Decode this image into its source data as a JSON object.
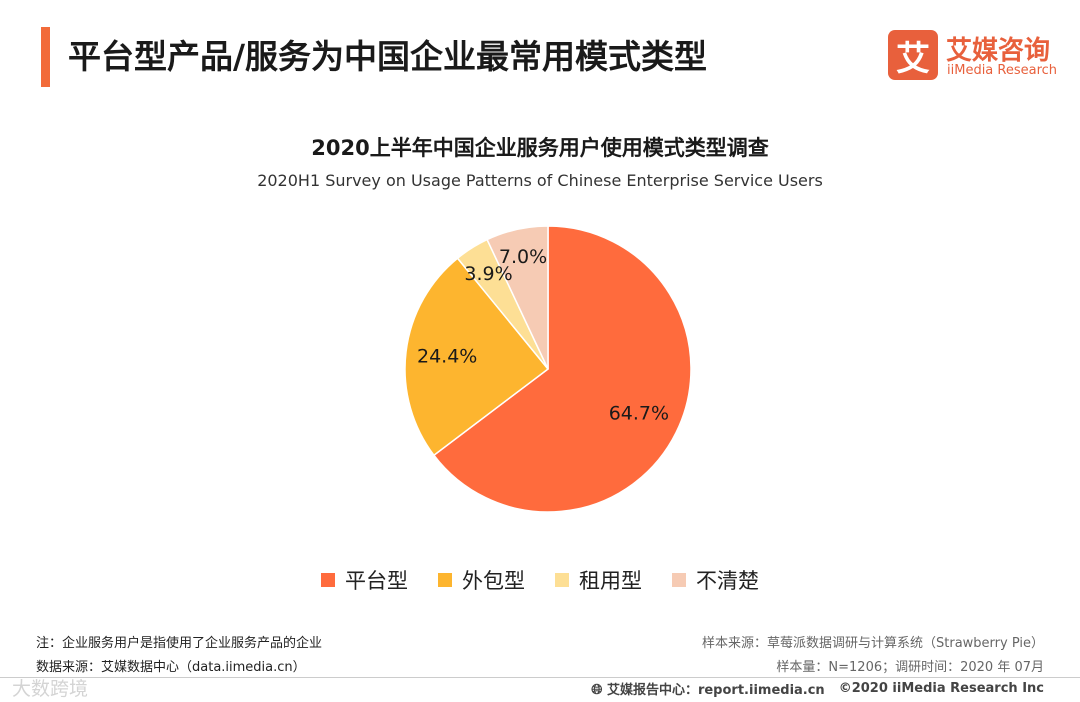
{
  "header": {
    "title": "平台型产品/服务为中国企业最常用模式类型",
    "accent_color": "#f26b3a"
  },
  "logo": {
    "mark": "艾",
    "name_cn": "艾媒咨询",
    "name_en": "iiMedia Research",
    "color": "#e8603c"
  },
  "chart_data": {
    "type": "pie",
    "title": "2020上半年中国企业服务用户使用模式类型调查",
    "subtitle": "2020H1 Survey on Usage Patterns of Chinese Enterprise Service Users",
    "unit": "%",
    "legend_position": "bottom",
    "slices": [
      {
        "label": "平台型",
        "value": 64.7,
        "display": "64.7%",
        "color": "#ff6b3d"
      },
      {
        "label": "外包型",
        "value": 24.4,
        "display": "24.4%",
        "color": "#fdb52f"
      },
      {
        "label": "租用型",
        "value": 3.9,
        "display": "3.9%",
        "color": "#fddf95"
      },
      {
        "label": "不清楚",
        "value": 7.0,
        "display": "7.0%",
        "color": "#f6cbb4"
      }
    ]
  },
  "notes": {
    "note": "注：企业服务用户是指使用了企业服务产品的企业",
    "source": "数据来源：艾媒数据中心（data.iimedia.cn）",
    "sample_source": "样本来源：草莓派数据调研与计算系统（Strawberry Pie）",
    "sample_info": "样本量：N=1206；调研时间：2020 年 07月"
  },
  "footer": {
    "report_center": "艾媒报告中心：report.iimedia.cn",
    "copyright": "©2020  iiMedia Research  Inc",
    "watermark": "大数跨境"
  }
}
